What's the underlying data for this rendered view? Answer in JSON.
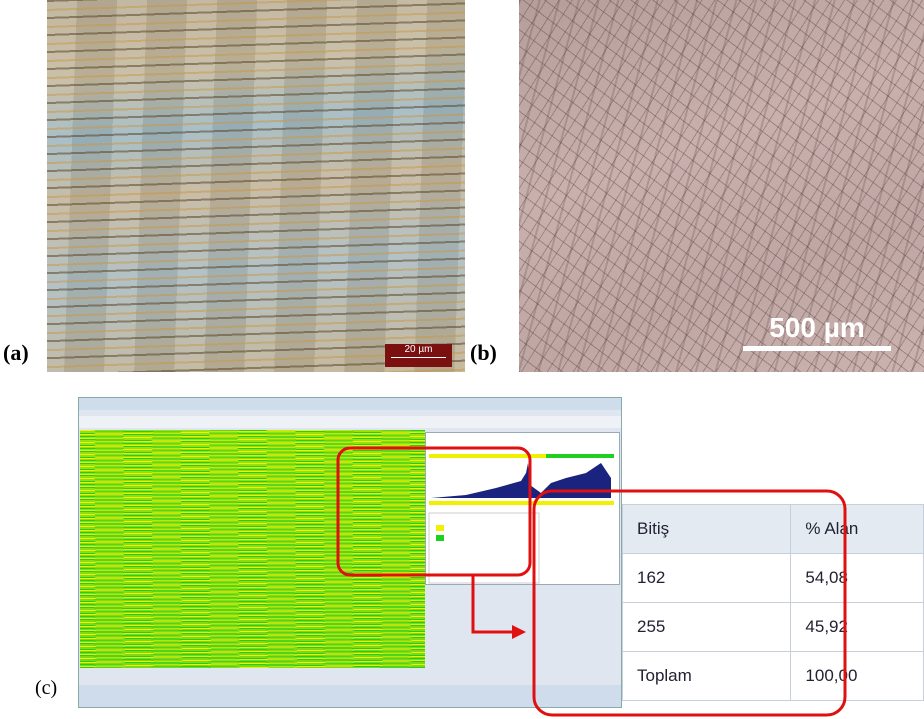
{
  "panels": [
    {
      "label": "(a)",
      "scale_bar": "20 µm"
    },
    {
      "label": "(b)",
      "scale_bar": "500 µm"
    },
    {
      "label": "(c)",
      "zoom_table": {
        "header": [
          "Bitiş",
          "% Alan"
        ],
        "rows": [
          [
            "162",
            "54,08"
          ],
          [
            "255",
            "45,92"
          ],
          [
            "Toplam",
            "100,00"
          ]
        ]
      }
    }
  ]
}
